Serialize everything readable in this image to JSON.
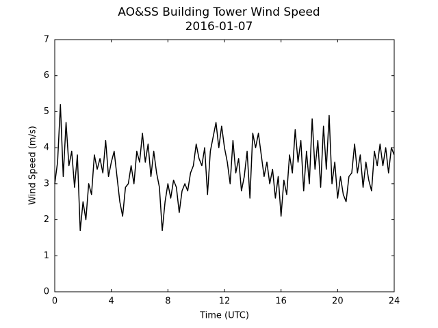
{
  "chart_data": {
    "type": "line",
    "title": "AO&SS Building Tower Wind Speed",
    "subtitle": "2016-01-07",
    "x_label": "Time (UTC)",
    "y_label": "Wind Speed (m/s)",
    "x": [
      0,
      0.2,
      0.4,
      0.6,
      0.8,
      1,
      1.2,
      1.4,
      1.6,
      1.8,
      2,
      2.2,
      2.4,
      2.6,
      2.8,
      3,
      3.2,
      3.4,
      3.6,
      3.8,
      4,
      4.2,
      4.4,
      4.6,
      4.8,
      5,
      5.2,
      5.4,
      5.6,
      5.8,
      6,
      6.2,
      6.4,
      6.6,
      6.8,
      7,
      7.2,
      7.4,
      7.6,
      7.8,
      8,
      8.2,
      8.4,
      8.6,
      8.8,
      9,
      9.2,
      9.4,
      9.6,
      9.8,
      10,
      10.2,
      10.4,
      10.6,
      10.8,
      11,
      11.2,
      11.4,
      11.6,
      11.8,
      12,
      12.2,
      12.4,
      12.6,
      12.8,
      13,
      13.2,
      13.4,
      13.6,
      13.8,
      14,
      14.2,
      14.4,
      14.6,
      14.8,
      15,
      15.2,
      15.4,
      15.6,
      15.8,
      16,
      16.2,
      16.4,
      16.6,
      16.8,
      17,
      17.2,
      17.4,
      17.6,
      17.8,
      18,
      18.2,
      18.4,
      18.6,
      18.8,
      19,
      19.2,
      19.4,
      19.6,
      19.8,
      20,
      20.2,
      20.4,
      20.6,
      20.8,
      21,
      21.2,
      21.4,
      21.6,
      21.8,
      22,
      22.2,
      22.4,
      22.6,
      22.8,
      23,
      23.2,
      23.4,
      23.6,
      23.8,
      24
    ],
    "series": [
      {
        "color": "#000000",
        "values": [
          3.0,
          3.6,
          5.2,
          3.2,
          4.7,
          3.5,
          3.9,
          2.9,
          3.8,
          1.7,
          2.5,
          2.0,
          3.0,
          2.7,
          3.8,
          3.4,
          3.7,
          3.3,
          4.2,
          3.2,
          3.6,
          3.9,
          3.2,
          2.5,
          2.1,
          2.9,
          3.0,
          3.5,
          3.0,
          3.9,
          3.6,
          4.4,
          3.6,
          4.1,
          3.2,
          3.9,
          3.3,
          2.9,
          1.7,
          2.5,
          3.0,
          2.6,
          3.1,
          2.9,
          2.2,
          2.8,
          3.0,
          2.8,
          3.3,
          3.5,
          4.1,
          3.7,
          3.5,
          4.0,
          2.7,
          3.9,
          4.3,
          4.7,
          4.0,
          4.6,
          4.0,
          3.6,
          3.0,
          4.2,
          3.3,
          3.7,
          2.8,
          3.2,
          3.9,
          2.6,
          4.4,
          4.0,
          4.4,
          3.8,
          3.2,
          3.6,
          3.0,
          3.4,
          2.6,
          3.2,
          2.1,
          3.1,
          2.7,
          3.8,
          3.3,
          4.5,
          3.6,
          4.2,
          2.8,
          3.9,
          3.0,
          4.8,
          3.4,
          4.2,
          2.9,
          4.6,
          3.4,
          4.9,
          3.0,
          3.6,
          2.6,
          3.2,
          2.7,
          2.5,
          3.2,
          3.3,
          4.1,
          3.3,
          3.8,
          2.9,
          3.6,
          3.1,
          2.8,
          3.9,
          3.5,
          4.1,
          3.5,
          4.0,
          3.3,
          4.0,
          3.8
        ]
      }
    ],
    "xlim": [
      0,
      24
    ],
    "xticks": [
      0,
      4,
      8,
      12,
      16,
      20,
      24
    ],
    "ylim": [
      0,
      7
    ],
    "yticks": [
      0,
      1,
      2,
      3,
      4,
      5,
      6,
      7
    ]
  }
}
